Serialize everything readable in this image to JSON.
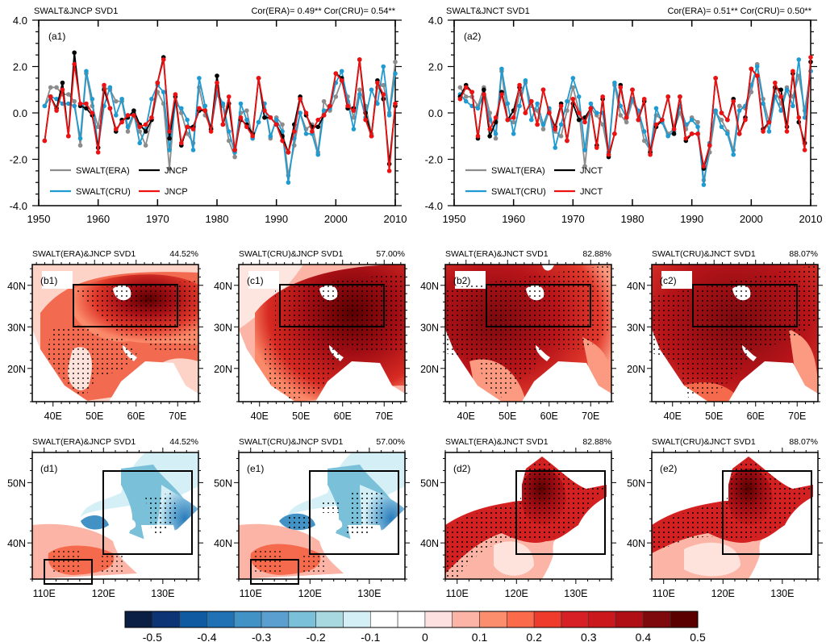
{
  "chart_data": [
    {
      "id": "a1",
      "type": "line",
      "panel_label": "(a1)",
      "title": "SWALT&JNCP SVD1",
      "correlation_text": "Cor(ERA)=  0.49**  Cor(CRU)=  0.54**",
      "xlim": [
        1950,
        2010
      ],
      "ylim": [
        -4.0,
        4.0
      ],
      "xticks": [
        1950,
        1960,
        1970,
        1980,
        1990,
        2000,
        2010
      ],
      "yticks": [
        "-4.0",
        "-2.0",
        "0.0",
        "2.0",
        "4.0"
      ],
      "ytick_values": [
        -4,
        -2,
        0,
        2,
        4
      ],
      "legend_position": "bottom-left",
      "x": [
        1951,
        1952,
        1953,
        1954,
        1955,
        1956,
        1957,
        1958,
        1959,
        1960,
        1961,
        1962,
        1963,
        1964,
        1965,
        1966,
        1967,
        1968,
        1969,
        1970,
        1971,
        1972,
        1973,
        1974,
        1975,
        1976,
        1977,
        1978,
        1979,
        1980,
        1981,
        1982,
        1983,
        1984,
        1985,
        1986,
        1987,
        1988,
        1989,
        1990,
        1991,
        1992,
        1993,
        1994,
        1995,
        1996,
        1997,
        1998,
        1999,
        2000,
        2001,
        2002,
        2003,
        2004,
        2005,
        2006,
        2007,
        2008,
        2009,
        2010
      ],
      "series": [
        {
          "name": "SWALT(ERA)",
          "color": "#8c8c8c",
          "values": [
            0.3,
            1.1,
            1.1,
            0.8,
            0.8,
            0.5,
            -1.4,
            1.7,
            0.3,
            -0.6,
            1.1,
            1.0,
            0.5,
            0.5,
            -0.8,
            -0.1,
            -0.8,
            -1.4,
            -0.3,
            0.9,
            0.4,
            -2.4,
            0.7,
            0.0,
            -0.9,
            -1.3,
            1.1,
            -0.1,
            -0.6,
            0.8,
            0.3,
            -1.2,
            -1.9,
            0.0,
            0.1,
            -1.1,
            -0.4,
            0.4,
            -1.1,
            -0.2,
            -0.5,
            -2.7,
            -1.4,
            0.0,
            -0.7,
            -0.5,
            -1.7,
            0.5,
            0.1,
            0.7,
            1.4,
            0.7,
            -0.2,
            1.0,
            0.3,
            -0.9,
            1.1,
            1.2,
            0.0,
            2.2
          ]
        },
        {
          "name": "SWALT(CRU)",
          "color": "#1f9bd1",
          "values": [
            0.3,
            0.7,
            0.6,
            0.4,
            0.4,
            0.3,
            -1.1,
            1.8,
            0.6,
            -1.5,
            0.3,
            1.1,
            -0.1,
            0.6,
            -0.6,
            0.0,
            -1.3,
            -0.7,
            0.6,
            1.2,
            0.9,
            -1.6,
            0.4,
            0.2,
            -0.3,
            -1.6,
            1.5,
            0.3,
            -0.7,
            0.9,
            0.4,
            -0.8,
            -1.7,
            0.4,
            -0.3,
            -1.1,
            -0.4,
            0.4,
            -1.0,
            -0.3,
            -0.8,
            -3.0,
            -1.1,
            0.0,
            -0.9,
            -0.9,
            -1.8,
            0.1,
            0.2,
            1.3,
            1.8,
            0.5,
            -0.7,
            0.8,
            -0.2,
            1.0,
            0.4,
            2.0,
            -0.1,
            1.7
          ]
        },
        {
          "name": "JNCP",
          "color": "#000000",
          "values": [
            -1.2,
            0.7,
            0.2,
            1.3,
            -1.0,
            2.6,
            0.3,
            0.2,
            -0.1,
            -1.5,
            1.0,
            0.2,
            -0.8,
            -0.3,
            -0.2,
            0.1,
            -0.5,
            -0.8,
            -0.3,
            1.3,
            2.4,
            -1.1,
            0.7,
            -1.4,
            -0.6,
            -0.6,
            0.1,
            0.1,
            -0.7,
            1.6,
            -0.5,
            0.4,
            -1.6,
            -0.3,
            -0.5,
            -0.9,
            1.5,
            -0.2,
            -0.2,
            -0.5,
            -1.0,
            -1.7,
            -0.5,
            0.7,
            -0.1,
            -0.6,
            -0.6,
            -0.1,
            0.3,
            1.7,
            1.5,
            0.2,
            0.2,
            2.3,
            0.0,
            -1.0,
            1.4,
            0.6,
            -2.2,
            0.3
          ]
        },
        {
          "name": "JNCP",
          "color": "#ee1111",
          "values": [
            -1.2,
            0.7,
            0.1,
            1.0,
            -1.0,
            2.1,
            0.4,
            0.4,
            0.0,
            -1.7,
            1.2,
            0.2,
            -0.7,
            -0.4,
            -0.1,
            -0.1,
            -0.6,
            -0.5,
            -0.2,
            1.3,
            2.3,
            -0.8,
            0.8,
            -1.3,
            -0.6,
            -0.7,
            0.2,
            0.1,
            -0.8,
            1.3,
            -0.5,
            0.7,
            -1.6,
            -0.2,
            -0.6,
            -1.0,
            1.5,
            0.1,
            -0.2,
            -0.5,
            -1.2,
            -1.7,
            -0.8,
            0.6,
            0.0,
            -0.8,
            -0.3,
            -0.1,
            0.3,
            1.7,
            1.4,
            0.3,
            0.1,
            2.3,
            -0.3,
            -1.0,
            1.3,
            0.8,
            -2.5,
            0.4
          ]
        }
      ]
    },
    {
      "id": "a2",
      "type": "line",
      "panel_label": "(a2)",
      "title": "SWALT&JNCT SVD1",
      "correlation_text": "Cor(ERA)=  0.51**  Cor(CRU)=  0.50**",
      "xlim": [
        1950,
        2010
      ],
      "ylim": [
        -4.0,
        4.0
      ],
      "xticks": [
        1950,
        1960,
        1970,
        1980,
        1990,
        2000,
        2010
      ],
      "yticks": [
        "-4.0",
        "-2.0",
        "0.0",
        "2.0",
        "4.0"
      ],
      "ytick_values": [
        -4,
        -2,
        0,
        2,
        4
      ],
      "legend_position": "bottom-left",
      "x": [
        1951,
        1952,
        1953,
        1954,
        1955,
        1956,
        1957,
        1958,
        1959,
        1960,
        1961,
        1962,
        1963,
        1964,
        1965,
        1966,
        1967,
        1968,
        1969,
        1970,
        1971,
        1972,
        1973,
        1974,
        1975,
        1976,
        1977,
        1978,
        1979,
        1980,
        1981,
        1982,
        1983,
        1984,
        1985,
        1986,
        1987,
        1988,
        1989,
        1990,
        1991,
        1992,
        1993,
        1994,
        1995,
        1996,
        1997,
        1998,
        1999,
        2000,
        2001,
        2002,
        2003,
        2004,
        2005,
        2006,
        2007,
        2008,
        2009,
        2010
      ],
      "series": [
        {
          "name": "SWALT(ERA)",
          "color": "#8c8c8c",
          "values": [
            1.1,
            0.7,
            0.7,
            0.3,
            1.1,
            0.0,
            -1.1,
            1.8,
            -0.3,
            -0.4,
            0.8,
            1.3,
            0.3,
            0.1,
            -0.7,
            0.1,
            -0.8,
            -1.0,
            0.1,
            1.1,
            0.1,
            -2.3,
            0.2,
            -0.1,
            -0.5,
            -1.8,
            1.2,
            -0.1,
            -0.4,
            0.5,
            0.0,
            -1.2,
            -1.6,
            -0.1,
            -0.3,
            -0.9,
            -0.7,
            0.0,
            -0.7,
            -0.2,
            -0.4,
            -2.9,
            -1.7,
            0.0,
            -0.3,
            -0.8,
            -1.6,
            0.3,
            0.2,
            0.9,
            2.1,
            0.6,
            -0.4,
            1.0,
            0.4,
            1.1,
            0.7,
            1.6,
            0.1,
            1.8
          ]
        },
        {
          "name": "SWALT(CRU)",
          "color": "#1f9bd1",
          "values": [
            0.8,
            0.5,
            0.3,
            0.2,
            0.8,
            -0.3,
            -0.9,
            1.9,
            0.4,
            -0.9,
            0.3,
            1.4,
            -0.3,
            0.4,
            -0.5,
            0.2,
            -1.5,
            -0.5,
            0.5,
            1.5,
            0.7,
            -1.6,
            0.4,
            0.0,
            0.0,
            -1.7,
            1.3,
            0.3,
            -0.2,
            0.6,
            0.1,
            -0.8,
            -1.7,
            0.2,
            -0.4,
            -1.0,
            -0.8,
            0.3,
            -0.5,
            -0.3,
            -0.6,
            -3.1,
            -1.3,
            0.1,
            -0.6,
            -0.9,
            -1.8,
            0.1,
            0.3,
            1.2,
            2.0,
            0.4,
            -0.8,
            0.7,
            0.1,
            1.0,
            0.3,
            2.3,
            -0.2,
            1.8
          ]
        },
        {
          "name": "JNCT",
          "color": "#000000",
          "values": [
            0.7,
            1.2,
            0.9,
            -1.1,
            1.0,
            -1.0,
            -0.4,
            0.9,
            -0.3,
            0.1,
            1.1,
            0.0,
            0.5,
            -0.5,
            1.0,
            0.0,
            -0.6,
            0.4,
            -1.2,
            0.4,
            -0.3,
            -0.2,
            0.2,
            -1.4,
            0.6,
            -1.9,
            -0.9,
            1.2,
            -0.2,
            1.0,
            -0.3,
            0.5,
            -1.7,
            -0.6,
            -0.3,
            0.7,
            -0.9,
            0.7,
            -1.2,
            -0.9,
            -0.9,
            -2.4,
            -1.4,
            1.5,
            0.0,
            -0.3,
            0.6,
            -0.9,
            -0.2,
            1.9,
            1.6,
            -0.7,
            -0.4,
            1.1,
            1.0,
            -0.6,
            1.7,
            -0.4,
            -1.3,
            2.2
          ]
        },
        {
          "name": "JNCT",
          "color": "#ee1111",
          "values": [
            0.6,
            1.1,
            0.9,
            -1.0,
            0.8,
            -0.7,
            -0.2,
            0.8,
            -0.3,
            -0.2,
            1.2,
            0.0,
            0.5,
            -0.5,
            1.0,
            0.0,
            -0.7,
            0.3,
            -1.2,
            0.6,
            0.0,
            -0.4,
            0.2,
            -1.5,
            0.7,
            -1.8,
            -0.9,
            1.1,
            -0.2,
            1.0,
            -0.3,
            0.6,
            -1.8,
            -0.5,
            -0.3,
            0.7,
            -0.7,
            0.7,
            -1.1,
            -0.9,
            -0.9,
            -2.3,
            -1.4,
            1.5,
            0.0,
            -0.3,
            0.5,
            -0.9,
            -0.3,
            1.9,
            1.6,
            -0.8,
            -0.4,
            1.3,
            0.7,
            -0.8,
            1.8,
            -0.2,
            -1.6,
            2.4
          ]
        }
      ]
    },
    {
      "id": "b1",
      "type": "heatmap",
      "panel_label": "(b1)",
      "title": "SWALT(ERA)&JNCP SVD1",
      "variance": "44.52%",
      "region": "southwest-asia",
      "xticks": [
        "40E",
        "50E",
        "60E",
        "70E"
      ],
      "yticks": [
        "20N",
        "30N",
        "40N"
      ],
      "xlim_deg": [
        35,
        75
      ],
      "ylim_deg": [
        12,
        45
      ],
      "box_deg": [
        45,
        70,
        30,
        40
      ],
      "field_pattern": "strong positive centered on Iran/Afghanistan; weak over central Arabian peninsula"
    },
    {
      "id": "c1",
      "type": "heatmap",
      "panel_label": "(c1)",
      "title": "SWALT(CRU)&JNCP SVD1",
      "variance": "57.00%",
      "region": "southwest-asia",
      "xticks": [
        "40E",
        "50E",
        "60E",
        "70E"
      ],
      "yticks": [
        "20N",
        "30N",
        "40N"
      ],
      "xlim_deg": [
        35,
        75
      ],
      "ylim_deg": [
        12,
        45
      ],
      "box_deg": [
        45,
        70,
        30,
        40
      ],
      "field_pattern": "strong positive over Iran, Afghanistan and Arabian peninsula"
    },
    {
      "id": "b2",
      "type": "heatmap",
      "panel_label": "(b2)",
      "title": "SWALT(ERA)&JNCT SVD1",
      "variance": "82.88%",
      "region": "southwest-asia",
      "xticks": [
        "40E",
        "50E",
        "60E",
        "70E"
      ],
      "yticks": [
        "20N",
        "30N",
        "40N"
      ],
      "xlim_deg": [
        35,
        75
      ],
      "ylim_deg": [
        12,
        45
      ],
      "box_deg": [
        45,
        70,
        30,
        40
      ],
      "field_pattern": "positive over whole domain, maximum near 45E-50E 35N"
    },
    {
      "id": "c2",
      "type": "heatmap",
      "panel_label": "(c2)",
      "title": "SWALT(CRU)&JNCT SVD1",
      "variance": "88.07%",
      "region": "southwest-asia",
      "xticks": [
        "40E",
        "50E",
        "60E",
        "70E"
      ],
      "yticks": [
        "20N",
        "30N",
        "40N"
      ],
      "xlim_deg": [
        35,
        75
      ],
      "ylim_deg": [
        12,
        45
      ],
      "box_deg": [
        45,
        70,
        30,
        40
      ],
      "field_pattern": "positive over whole domain, widespread significance"
    },
    {
      "id": "d1",
      "type": "heatmap",
      "panel_label": "(d1)",
      "title": "SWALT(ERA)&JNCP SVD1",
      "variance": "44.52%",
      "region": "north-china",
      "xticks": [
        "110E",
        "120E",
        "130E"
      ],
      "yticks": [
        "40N",
        "50N"
      ],
      "xlim_deg": [
        108,
        136
      ],
      "ylim_deg": [
        34,
        55
      ],
      "boxes_deg": [
        [
          120,
          135,
          40,
          54
        ],
        [
          110,
          118,
          35,
          39
        ]
      ],
      "field_pattern": "negative over northeast China, positive over north China plain"
    },
    {
      "id": "e1",
      "type": "heatmap",
      "panel_label": "(e1)",
      "title": "SWALT(CRU)&JNCP SVD1",
      "variance": "57.00%",
      "region": "north-china",
      "xticks": [
        "110E",
        "120E",
        "130E"
      ],
      "yticks": [
        "40N",
        "50N"
      ],
      "xlim_deg": [
        108,
        136
      ],
      "ylim_deg": [
        34,
        55
      ],
      "boxes_deg": [
        [
          120,
          135,
          40,
          54
        ],
        [
          110,
          118,
          35,
          39
        ]
      ],
      "field_pattern": "negative over northeast China, positive over north China plain"
    },
    {
      "id": "d2",
      "type": "heatmap",
      "panel_label": "(d2)",
      "title": "SWALT(ERA)&JNCT SVD1",
      "variance": "82.88%",
      "region": "north-china",
      "xticks": [
        "110E",
        "120E",
        "130E"
      ],
      "yticks": [
        "40N",
        "50N"
      ],
      "xlim_deg": [
        108,
        136
      ],
      "ylim_deg": [
        34,
        55
      ],
      "boxes_deg": [
        [
          120,
          135,
          40,
          54
        ]
      ],
      "field_pattern": "strong positive over northeast China"
    },
    {
      "id": "e2",
      "type": "heatmap",
      "panel_label": "(e2)",
      "title": "SWALT(CRU)&JNCT SVD1",
      "variance": "88.07%",
      "region": "north-china",
      "xticks": [
        "110E",
        "120E",
        "130E"
      ],
      "yticks": [
        "40N",
        "50N"
      ],
      "xlim_deg": [
        108,
        136
      ],
      "ylim_deg": [
        34,
        55
      ],
      "boxes_deg": [
        [
          120,
          135,
          40,
          54
        ]
      ],
      "field_pattern": "strong positive over northeast China"
    }
  ],
  "colorbar": {
    "labels": [
      "-0.5",
      "-0.4",
      "-0.3",
      "-0.2",
      "-0.1",
      "0",
      "0.1",
      "0.2",
      "0.3",
      "0.4",
      "0.5"
    ],
    "colors": [
      "#0b1f45",
      "#0d3474",
      "#0f5aa0",
      "#2171b5",
      "#4292c6",
      "#5a9fcf",
      "#7ac0d8",
      "#a8d9e0",
      "#d4eff6",
      "#ffffff",
      "#ffffff",
      "#fde0e0",
      "#fcb4a6",
      "#fc8e6e",
      "#fb6a4a",
      "#ef3b2c",
      "#d71f26",
      "#cb181d",
      "#b01015",
      "#7f0a0e",
      "#5a0000"
    ]
  }
}
